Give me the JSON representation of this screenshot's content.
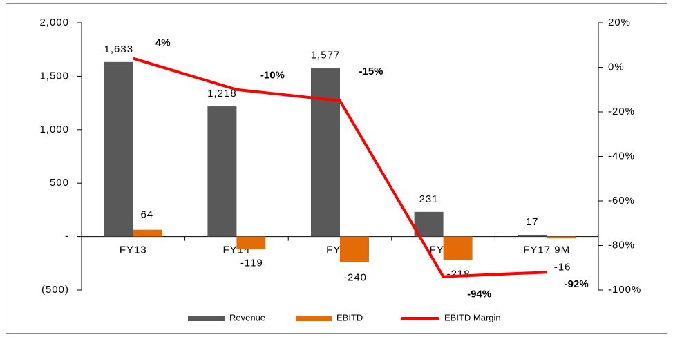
{
  "chart_data": {
    "type": "bar_line",
    "categories": [
      "FY13",
      "FY14",
      "FY15",
      "FY16",
      "FY17 9M"
    ],
    "series": [
      {
        "name": "Revenue",
        "color": "#595959",
        "values": [
          1633,
          1218,
          1577,
          231,
          17
        ],
        "value_labels": [
          "1,633",
          "1,218",
          "1,577",
          "231",
          "17"
        ]
      },
      {
        "name": "EBITD",
        "color": "#e36c09",
        "values": [
          64,
          -119,
          -240,
          -218,
          -16
        ]
      },
      {
        "name": "EBITD Margin",
        "color": "#ff0000",
        "axis": "y2",
        "values": [
          4,
          -10,
          -15,
          -94,
          -92
        ],
        "value_labels": [
          "4%",
          "-10%",
          "-15%",
          "-94%",
          "-92%"
        ]
      }
    ],
    "ylim": [
      -500,
      2000
    ],
    "yticks": [
      {
        "value": -500,
        "label": "(500)"
      },
      {
        "value": 0,
        "label": "-"
      },
      500,
      {
        "value": 1000,
        "label": "1,000"
      },
      {
        "value": 1500,
        "label": "1,500"
      },
      {
        "value": 2000,
        "label": "2,000"
      }
    ],
    "y2lim": [
      -100,
      20
    ],
    "y2ticks": [
      {
        "value": -100,
        "label": "-100%"
      },
      {
        "value": -80,
        "label": "-80%"
      },
      {
        "value": -60,
        "label": "-60%"
      },
      {
        "value": -40,
        "label": "-40%"
      },
      {
        "value": -20,
        "label": "-20%"
      },
      {
        "value": 0,
        "label": "0%"
      },
      {
        "value": 20,
        "label": "20%"
      }
    ],
    "legend": "bottom"
  }
}
